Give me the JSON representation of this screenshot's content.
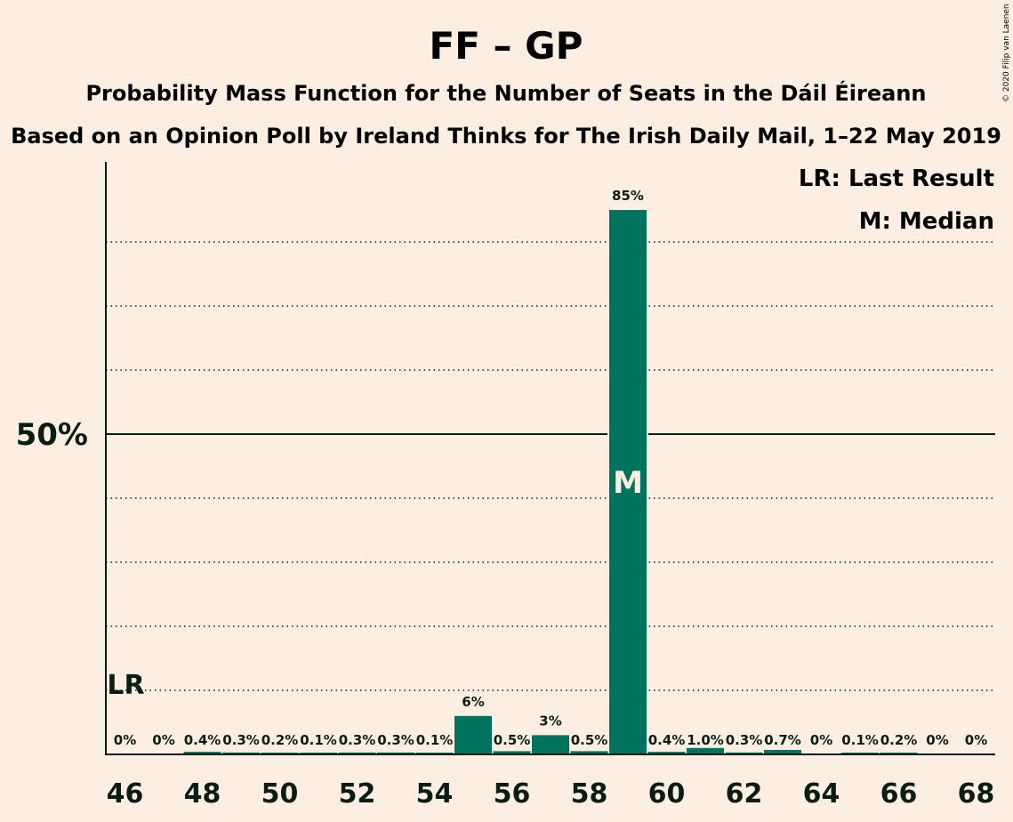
{
  "title": "FF – GP",
  "subtitle1": "Probability Mass Function for the Number of Seats in the Dáil Éireann",
  "subtitle2": "Based on an Opinion Poll by Ireland Thinks for The Irish Daily Mail, 1–22 May 2019",
  "copyright": "© 2020 Filip van Laenen",
  "legend": {
    "lr": "LR: Last Result",
    "median": "M: Median"
  },
  "lr_marker": {
    "label": "LR",
    "seats": 46
  },
  "median_marker": {
    "label": "M",
    "seats": 59
  },
  "colors": {
    "background": "#FDEEE2",
    "bar": "#00735E",
    "text": "#0B1D12"
  },
  "chart_data": {
    "type": "bar",
    "x": [
      46,
      47,
      48,
      49,
      50,
      51,
      52,
      53,
      54,
      55,
      56,
      57,
      58,
      59,
      60,
      61,
      62,
      63,
      64,
      65,
      66,
      67,
      68
    ],
    "values": [
      0,
      0,
      0.4,
      0.3,
      0.2,
      0.1,
      0.3,
      0.3,
      0.1,
      6,
      0.5,
      3,
      0.5,
      85,
      0.4,
      1.0,
      0.3,
      0.7,
      0,
      0.1,
      0.2,
      0,
      0
    ],
    "value_labels": [
      "0%",
      "0%",
      "0.4%",
      "0.3%",
      "0.2%",
      "0.1%",
      "0.3%",
      "0.3%",
      "0.1%",
      "6%",
      "0.5%",
      "3%",
      "0.5%",
      "85%",
      "0.4%",
      "1.0%",
      "0.3%",
      "0.7%",
      "0%",
      "0.1%",
      "0.2%",
      "0%",
      "0%"
    ],
    "x_tick_labels": [
      "46",
      "48",
      "50",
      "52",
      "54",
      "56",
      "58",
      "60",
      "62",
      "64",
      "66",
      "68"
    ],
    "y_tick_labels": [
      "50%"
    ],
    "ylim": [
      0,
      92
    ],
    "grid": "dotted every 10%, solid at 50%"
  }
}
